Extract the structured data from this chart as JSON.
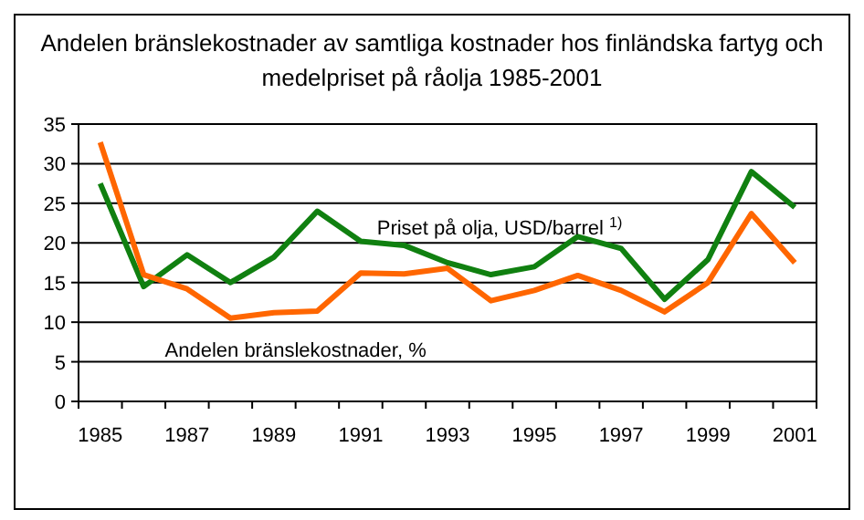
{
  "chart_data": {
    "type": "line",
    "title": "Andelen bränslekostnader av samtliga kostnader hos finländska fartyg och medelpriset på råolja 1985-2001",
    "categories": [
      "1985",
      null,
      "1987",
      null,
      "1989",
      null,
      "1991",
      null,
      "1993",
      null,
      "1995",
      null,
      "1997",
      null,
      "1999",
      null,
      "2001"
    ],
    "series": [
      {
        "name": "Priset på olja, USD/barrel $^{1)}$",
        "color": "#108010",
        "values": [
          27.5,
          14.5,
          18.5,
          15,
          18.2,
          24,
          20.2,
          19.7,
          17.5,
          16,
          17,
          20.8,
          19.3,
          12.9,
          17.9,
          29,
          24.5
        ]
      },
      {
        "name": "Andelen bränslekostnader, %",
        "color": "#ff6600",
        "values": [
          32.7,
          16,
          14.2,
          10.5,
          11.2,
          11.4,
          16.2,
          16.1,
          16.8,
          12.7,
          14,
          15.9,
          14,
          11.3,
          15,
          23.7,
          17.5
        ]
      }
    ],
    "ylim": [
      0,
      35
    ],
    "yticks": [
      0,
      5,
      10,
      15,
      20,
      25,
      30,
      35
    ],
    "grid": "y",
    "legend": false,
    "marker": "none",
    "line_style": "solid"
  }
}
